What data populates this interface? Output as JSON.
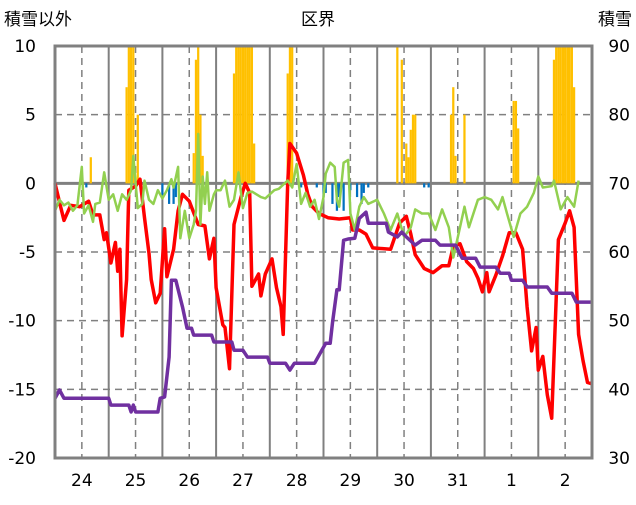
{
  "chart_data": {
    "type": "line",
    "title": "区界",
    "ylabel_left": "積雪以外",
    "ylabel_right": "積雪",
    "x_unit": "hours from day 24 00:00",
    "categories": [
      "24",
      "25",
      "26",
      "27",
      "28",
      "29",
      "30",
      "31",
      "1",
      "2"
    ],
    "xlim": [
      0,
      240
    ],
    "ylim_left": [
      -20,
      10
    ],
    "ylim_right": [
      30,
      90
    ],
    "yticks_left": [
      10,
      5,
      0,
      -5,
      -10,
      -15,
      -20
    ],
    "yticks_right": [
      90,
      80,
      70,
      60,
      50,
      40,
      30
    ],
    "grid": true,
    "colors": {
      "red": "#ff0000",
      "green": "#92d050",
      "purple": "#7030a0",
      "yellow": "#ffc000",
      "blue": "#0070c0",
      "grid": "#808080"
    },
    "series": [
      {
        "name": "red",
        "axis": "left",
        "color": "#ff0000",
        "x": [
          0,
          2.5,
          4,
          7,
          11,
          15,
          17,
          20,
          22,
          23,
          25,
          27,
          28,
          29,
          30,
          32,
          33,
          36,
          38,
          40,
          42,
          43,
          45,
          47,
          49,
          50,
          53,
          55,
          57,
          60,
          64,
          67,
          69,
          71,
          72,
          75,
          76,
          78,
          80,
          83,
          85,
          87,
          88,
          91,
          92,
          94,
          97,
          99,
          101,
          102,
          104,
          105,
          108,
          111,
          113,
          115,
          118,
          122,
          127,
          132,
          133,
          136,
          139,
          142,
          150,
          154,
          157,
          159,
          161,
          165,
          169,
          173,
          176,
          178,
          181,
          184,
          187,
          189,
          191,
          193,
          194,
          197,
          200,
          203,
          206,
          209,
          211,
          213,
          215,
          216,
          218,
          220,
          222,
          225,
          228,
          230,
          232,
          234,
          236,
          238,
          240
        ],
        "y": [
          0,
          -1.7,
          -2.7,
          -1.6,
          -1.7,
          -1.3,
          -2.3,
          -2.3,
          -4.1,
          -3.6,
          -5.8,
          -4.3,
          -6.4,
          -4.8,
          -11.1,
          -7,
          -0.5,
          -0.2,
          0.3,
          -2.5,
          -5.1,
          -7,
          -8.7,
          -8,
          -3.3,
          -6.8,
          -4.8,
          -2,
          -0.8,
          -1.3,
          -3,
          -3.1,
          -5.5,
          -4,
          -7.6,
          -10.3,
          -10.5,
          -13.5,
          -3,
          -1.1,
          0,
          -0.7,
          -7.5,
          -6.6,
          -8.2,
          -6.6,
          -5.5,
          -7.6,
          -9,
          -11,
          0,
          2.9,
          2.2,
          0.6,
          -0.8,
          -1.7,
          -2.2,
          -2.5,
          -2.6,
          -2.5,
          -3.4,
          -3.4,
          -3.7,
          -4.7,
          -4.8,
          -2.9,
          -2.4,
          -3.7,
          -5.2,
          -6.2,
          -6.5,
          -6,
          -6,
          -4.6,
          -4.4,
          -5.7,
          -6.2,
          -6.9,
          -7.9,
          -6.5,
          -7.9,
          -6.7,
          -5.3,
          -3.6,
          -3.6,
          -4.8,
          -9,
          -12.2,
          -10.5,
          -13.6,
          -12.6,
          -15.4,
          -17.1,
          -4.1,
          -2.9,
          -2,
          -3.2,
          -11,
          -12.9,
          -14.5,
          -14.6
        ]
      },
      {
        "name": "green",
        "axis": "left",
        "color": "#92d050",
        "x": [
          0,
          2,
          4,
          6,
          8,
          10,
          12,
          13,
          15,
          17,
          18,
          20,
          21,
          22,
          24,
          26,
          28,
          30,
          32,
          34,
          35,
          37,
          39,
          40,
          42,
          44,
          46,
          48,
          50,
          52,
          53,
          55,
          56,
          58,
          60,
          62,
          63,
          64,
          65,
          66,
          67,
          68,
          69,
          71,
          72,
          74,
          76,
          78,
          80,
          82,
          84,
          86,
          88,
          90,
          92,
          94,
          96,
          98,
          100,
          102,
          104,
          106,
          108,
          110,
          112,
          114,
          116,
          118,
          120,
          121,
          123,
          125,
          126,
          127,
          129,
          131,
          132,
          134,
          136,
          138,
          140,
          144,
          147,
          150,
          153,
          156,
          159,
          161,
          164,
          167,
          170,
          173,
          176,
          178,
          181,
          183,
          185,
          189,
          192,
          195,
          198,
          200,
          202,
          205,
          208,
          211,
          214,
          216,
          218,
          222,
          223,
          226,
          229,
          232,
          234
        ],
        "y": [
          -2,
          -1.2,
          -1.6,
          -1.4,
          -2,
          -1.6,
          1.2,
          -2.2,
          -1.6,
          -2.8,
          -1.5,
          -1.4,
          -0.3,
          0.8,
          -1.2,
          -0.8,
          -2,
          -0.8,
          -1.2,
          -0.5,
          2,
          -1.8,
          -1.5,
          0.2,
          -1.2,
          -1.5,
          -0.5,
          -1.1,
          -0.5,
          0.3,
          -0.3,
          1.2,
          -4,
          -2,
          -4,
          -3,
          -2,
          3.6,
          -3,
          0.5,
          -1.5,
          0.8,
          -2,
          -0.8,
          -0.5,
          -0.5,
          0.2,
          -1.7,
          -1.2,
          0.8,
          -1.8,
          -0.7,
          -0.6,
          -0.8,
          -1,
          -1.1,
          -0.8,
          -0.5,
          -0.4,
          -0.1,
          0.2,
          -0.3,
          1.4,
          -1.5,
          -0.7,
          -1.7,
          -1.2,
          -2.6,
          -1,
          0.7,
          1.5,
          1.2,
          -1.2,
          -1.7,
          1.5,
          1.7,
          -2.2,
          -3.4,
          -1.7,
          -1,
          -1.5,
          -1.2,
          -2.2,
          -3.4,
          -2.2,
          -3.9,
          -3.2,
          -1.9,
          -2.2,
          -2.2,
          -3.4,
          -1.9,
          -3.2,
          -5.4,
          -3.2,
          -1.7,
          -3.2,
          -1.2,
          -1,
          -1.2,
          -1.9,
          -1,
          -2.2,
          -3.9,
          -2.2,
          -1.7,
          -0.7,
          0.5,
          -0.3,
          -0.2,
          0.2,
          -1.9,
          -1,
          -1.7,
          0.2
        ]
      },
      {
        "name": "purple",
        "axis": "right",
        "color": "#7030a0",
        "x": [
          0,
          2,
          4,
          24,
          25,
          33,
          34,
          35,
          36,
          46,
          47,
          49,
          51,
          52,
          54,
          57,
          59,
          61,
          62,
          70,
          71,
          79,
          80,
          84,
          86,
          95,
          96,
          103,
          105,
          107,
          116,
          121,
          123,
          124,
          126,
          127,
          129,
          131,
          134,
          136,
          139,
          140,
          148,
          149,
          153,
          155,
          157,
          161,
          164,
          170,
          172,
          179,
          182,
          188,
          190,
          197,
          199,
          203,
          204,
          209,
          211,
          220,
          222,
          231,
          233,
          240
        ],
        "y": [
          38.7,
          39.9,
          38.7,
          38.7,
          37.7,
          37.7,
          36.7,
          37.7,
          36.7,
          36.7,
          38.7,
          38.9,
          44.7,
          55.9,
          55.9,
          52,
          48.9,
          48.9,
          47.9,
          47.9,
          46.9,
          46.9,
          45.7,
          45.7,
          44.7,
          44.7,
          43.8,
          43.8,
          42.8,
          43.8,
          43.8,
          46.7,
          46.7,
          49.7,
          54.5,
          54.5,
          61.7,
          61.9,
          62,
          64.9,
          65.8,
          64.2,
          64.2,
          62.9,
          62.2,
          62.9,
          62.2,
          61,
          61.7,
          61.7,
          61,
          61,
          59.1,
          59.1,
          57.8,
          57.8,
          56.9,
          56.9,
          55.9,
          55.9,
          54.9,
          54.9,
          54,
          54,
          52.7,
          52.7
        ]
      }
    ],
    "bars_yellow": {
      "x": [
        16,
        32,
        33,
        34,
        35,
        37,
        62,
        63,
        64,
        65,
        66,
        80,
        81,
        82,
        83,
        84,
        85,
        86,
        87,
        88,
        89,
        104,
        105,
        106,
        153,
        155,
        157,
        158,
        159,
        160,
        161,
        177,
        178,
        179,
        183,
        205,
        206,
        207,
        223,
        224,
        225,
        226,
        227,
        228,
        229,
        230,
        231,
        232
      ],
      "y": [
        1.9,
        7,
        10,
        10,
        10,
        5,
        2.2,
        9,
        10,
        5,
        2,
        8,
        10,
        10,
        10,
        10,
        10,
        10,
        10,
        10,
        2.9,
        8,
        10,
        10,
        10,
        9,
        2.9,
        1.9,
        3.9,
        5,
        5,
        5,
        7,
        2,
        5,
        6,
        6,
        4,
        9,
        10,
        10,
        10,
        10,
        10,
        10,
        10,
        10,
        7
      ]
    },
    "bars_blue": {
      "x": [
        14,
        48,
        51,
        53,
        54,
        110,
        117,
        120,
        121,
        124,
        126,
        127,
        129,
        132,
        135,
        137,
        138,
        140,
        165,
        167
      ],
      "y": [
        -0.3,
        -1,
        -1.5,
        -1.5,
        -1,
        -0.3,
        -0.3,
        -1,
        -0.7,
        -1.5,
        -2,
        -1,
        -2,
        -0.5,
        -1,
        -1.5,
        -0.7,
        -0.3,
        -0.3,
        -0.3
      ]
    }
  }
}
